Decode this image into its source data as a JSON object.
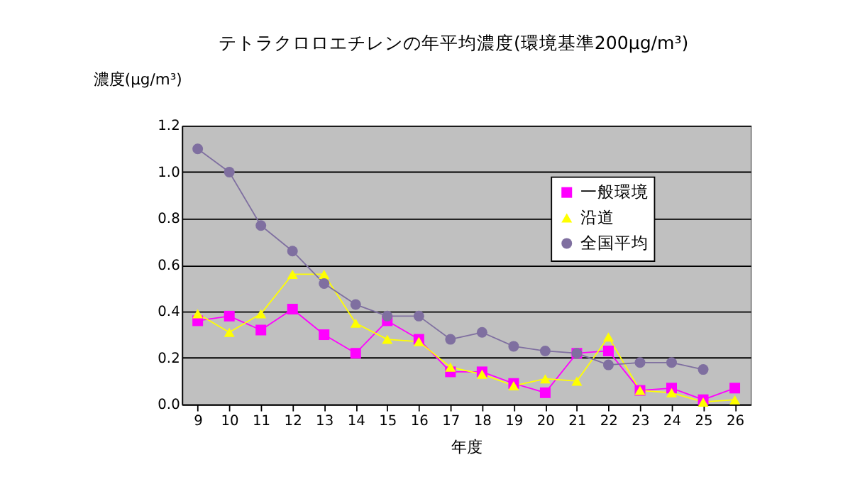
{
  "chart_data": {
    "type": "line",
    "title": "テトラクロロエチレンの年平均濃度(環境基準200μg/m³)",
    "xlabel": "年度",
    "ylabel": "濃度(μg/m³)",
    "categories": [
      "9",
      "10",
      "11",
      "12",
      "13",
      "14",
      "15",
      "16",
      "17",
      "18",
      "19",
      "20",
      "21",
      "22",
      "23",
      "24",
      "25",
      "26"
    ],
    "series": [
      {
        "name": "一般環境",
        "color": "#ff00ff",
        "marker": "square",
        "values": [
          0.36,
          0.38,
          0.32,
          0.41,
          0.3,
          0.22,
          0.36,
          0.28,
          0.14,
          0.14,
          0.09,
          0.05,
          0.22,
          0.23,
          0.06,
          0.07,
          0.02,
          0.07
        ]
      },
      {
        "name": "沿道",
        "color": "#ffff00",
        "marker": "triangle",
        "values": [
          0.39,
          0.31,
          0.39,
          0.56,
          0.56,
          0.35,
          0.28,
          0.27,
          0.16,
          0.13,
          0.08,
          0.11,
          0.1,
          0.29,
          0.06,
          0.05,
          0.01,
          0.02
        ]
      },
      {
        "name": "全国平均",
        "color": "#7f6fa0",
        "marker": "circle",
        "values": [
          1.1,
          1.0,
          0.77,
          0.66,
          0.52,
          0.43,
          0.38,
          0.38,
          0.28,
          0.31,
          0.25,
          0.23,
          0.22,
          0.17,
          0.18,
          0.18,
          0.15,
          null
        ]
      }
    ],
    "ylim": [
      0,
      1.2
    ],
    "yticks": [
      {
        "value": 0,
        "label": "0.0"
      },
      0.2,
      0.4,
      0.6,
      0.8,
      {
        "value": 1,
        "label": "1.0"
      },
      1.2
    ],
    "grid": "y",
    "legend": "top right"
  }
}
